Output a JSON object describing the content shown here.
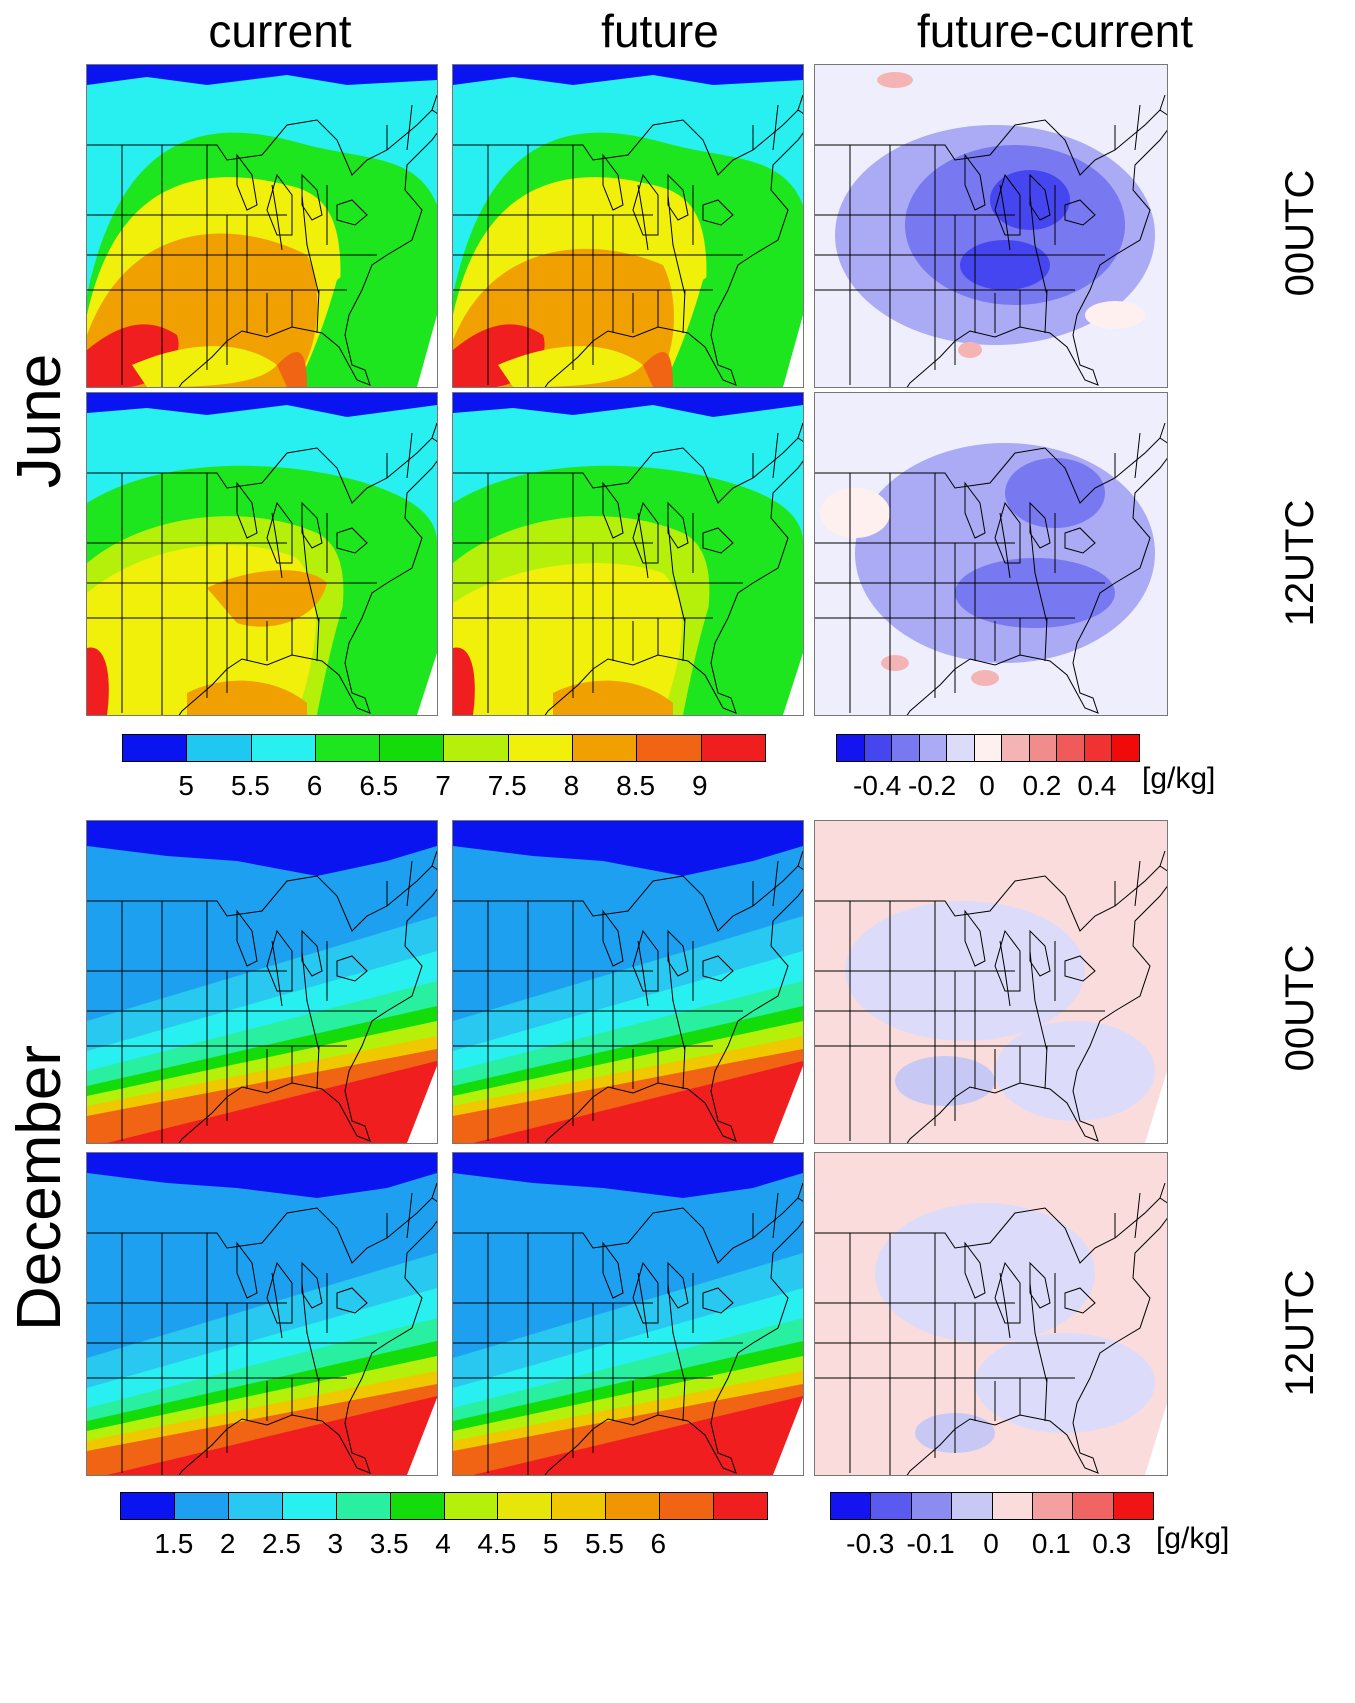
{
  "columns": [
    "current",
    "future",
    "future-current"
  ],
  "rows": [
    {
      "month": "June",
      "times": [
        "00UTC",
        "12UTC"
      ]
    },
    {
      "month": "December",
      "times": [
        "00UTC",
        "12UTC"
      ]
    }
  ],
  "june_colorbar": {
    "colors": [
      "#0a14f0",
      "#1ec8f0",
      "#28f0f0",
      "#1ee61e",
      "#14dc0a",
      "#b4f00a",
      "#f0f00a",
      "#f0a000",
      "#f06414",
      "#f01e1e"
    ],
    "labels": [
      "5",
      "5.5",
      "6",
      "6.5",
      "7",
      "7.5",
      "8",
      "8.5",
      "9"
    ]
  },
  "june_diff_colorbar": {
    "colors": [
      "#1414f0",
      "#4646f0",
      "#7878f0",
      "#aaaaf5",
      "#dcdcfa",
      "#fff0f0",
      "#f5b4b4",
      "#f08c8c",
      "#f05a5a",
      "#f03232",
      "#f00a0a"
    ],
    "labels": [
      "-0.4",
      "-0.2",
      "0",
      "0.2",
      "0.4"
    ],
    "unit": "[g/kg]"
  },
  "dec_colorbar": {
    "colors": [
      "#0a14f0",
      "#1ea0f0",
      "#28c8f0",
      "#28f0f0",
      "#28f0a0",
      "#14dc0a",
      "#b4f00a",
      "#e6e60a",
      "#f0c800",
      "#f09600",
      "#f06414",
      "#f01e1e"
    ],
    "labels": [
      "1.5",
      "2",
      "2.5",
      "3",
      "3.5",
      "4",
      "4.5",
      "5",
      "5.5",
      "6"
    ]
  },
  "dec_diff_colorbar": {
    "colors": [
      "#1414f0",
      "#5a5af0",
      "#8c8cf0",
      "#c8c8f5",
      "#fadcdc",
      "#f5a0a0",
      "#f06464",
      "#f01414"
    ],
    "labels": [
      "-0.3",
      "-0.1",
      "0",
      "0.1",
      "0.3"
    ],
    "unit": "[g/kg]"
  }
}
